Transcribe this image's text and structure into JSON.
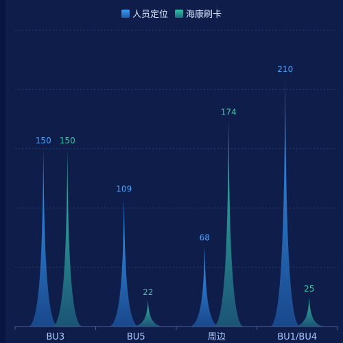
{
  "chart_data": {
    "type": "bar",
    "categories": [
      "BU3",
      "BU5",
      "周边",
      "BU1/BU4"
    ],
    "series": [
      {
        "name": "人员定位",
        "values": [
          150,
          109,
          68,
          210
        ],
        "color": "#2b86d9",
        "color_dark": "#1a4f96"
      },
      {
        "name": "海康刷卡",
        "values": [
          150,
          22,
          174,
          25
        ],
        "color": "#2aa78f",
        "color_dark": "#1c5d78"
      }
    ],
    "ylim": [
      0,
      250
    ],
    "grid": true,
    "legend_position": "top-center",
    "label_colors": [
      "#49a3ff",
      "#3fc3a9"
    ]
  }
}
